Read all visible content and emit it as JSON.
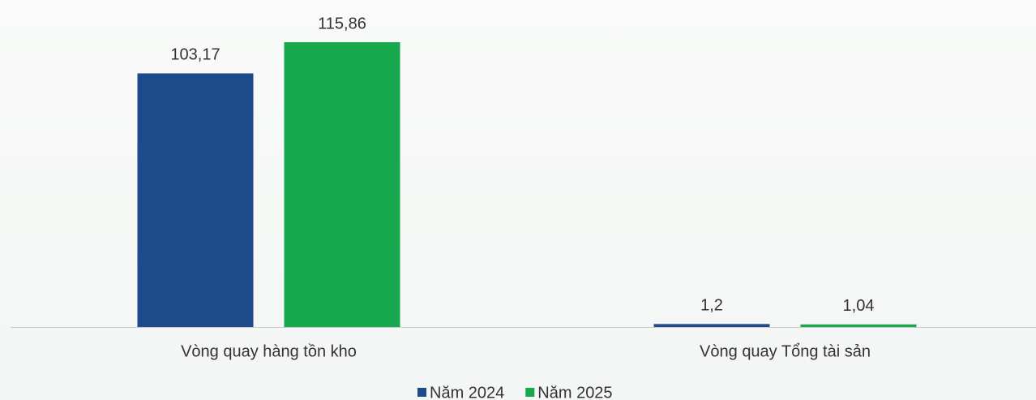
{
  "chart_data": {
    "type": "bar",
    "categories": [
      "Vòng quay hàng tồn kho",
      "Vòng quay Tổng tài sản"
    ],
    "series": [
      {
        "name": "Năm 2024",
        "color": "#1c4a8a",
        "values": [
          103.17,
          1.2
        ],
        "value_labels": [
          "103,17",
          "1,2"
        ]
      },
      {
        "name": "Năm 2025",
        "color": "#17a84d",
        "values": [
          115.86,
          1.04
        ],
        "value_labels": [
          "115,86",
          "1,04"
        ]
      }
    ],
    "legend": "bottom"
  }
}
